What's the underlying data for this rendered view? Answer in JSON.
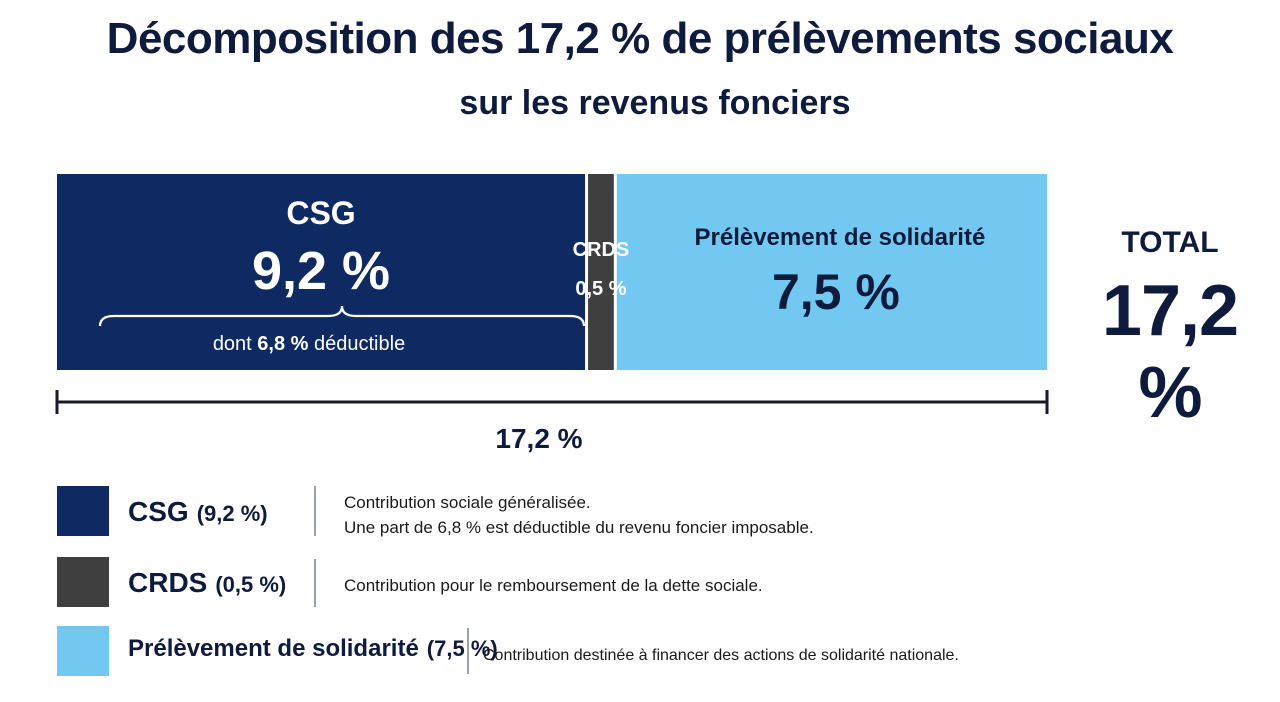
{
  "title": "Décomposition des 17,2 % de prélèvements sociaux",
  "subtitle": "sur les revenus fonciers",
  "colors": {
    "csg": "#0f2a62",
    "crds": "#3f3f3f",
    "solidarite": "#73c8f1",
    "text_dark": "#0f1b3d"
  },
  "chart_data": {
    "type": "bar",
    "orientation": "horizontal-stacked",
    "unit": "%",
    "total": 17.2,
    "total_label": "17,2 %",
    "segments": [
      {
        "name": "CSG",
        "value": 9.2,
        "value_label": "9,2 %",
        "note_prefix": "dont ",
        "note_value": "6,8 %",
        "note_suffix": " déductible",
        "deductible": 6.8
      },
      {
        "name": "CRDS",
        "value": 0.5,
        "value_label": "0,5 %"
      },
      {
        "name": "Prélèvement de solidarité",
        "value": 7.5,
        "value_label": "7,5 %"
      }
    ]
  },
  "total_box": {
    "label": "TOTAL",
    "value": "17,2 %"
  },
  "legend": [
    {
      "name": "CSG",
      "pct": "(9,2 %)",
      "desc_lines": [
        "Contribution sociale généralisée.",
        "Une part de 6,8 % est déductible du revenu foncier imposable."
      ]
    },
    {
      "name": "CRDS",
      "pct": "(0,5 %)",
      "desc_lines": [
        "Contribution pour le remboursement de la dette sociale."
      ]
    },
    {
      "name": "Prélèvement de solidarité",
      "pct": "(7,5 %)",
      "desc_lines": [
        "Contribution destinée à financer des actions de solidarité nationale."
      ]
    }
  ]
}
